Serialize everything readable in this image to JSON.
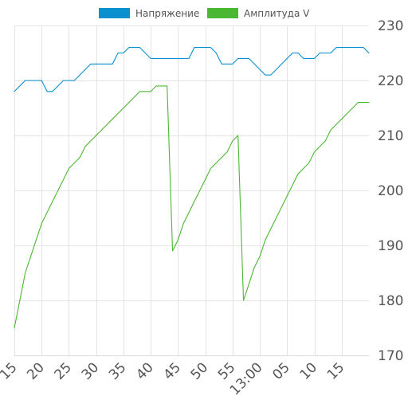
{
  "chart_data": {
    "type": "line",
    "legend": {
      "position": "top-center",
      "items": [
        {
          "name": "Напряжение",
          "color": "#0a8fcf"
        },
        {
          "name": "Амплитуда V",
          "color": "#4cb732"
        }
      ]
    },
    "y_axis": {
      "position": "right",
      "min": 170,
      "max": 230,
      "ticks": [
        170,
        180,
        190,
        200,
        210,
        220,
        230
      ]
    },
    "x_axis": {
      "unit": "minutes since 12:15",
      "tick_labels": [
        "15",
        "20",
        "25",
        "30",
        "35",
        "40",
        "45",
        "50",
        "55",
        "13:00",
        "05",
        "10",
        "15"
      ]
    },
    "grid": true,
    "series": [
      {
        "name": "Напряжение",
        "color": "#0a8fcf",
        "x": [
          0,
          1,
          2,
          3,
          4,
          5,
          6,
          7,
          8,
          9,
          10,
          11,
          12,
          13,
          14,
          15,
          16,
          17,
          18,
          19,
          20,
          21,
          22,
          23,
          24,
          25,
          26,
          27,
          28,
          29,
          30,
          31,
          32,
          33,
          34,
          35,
          36,
          37,
          38,
          39,
          40,
          41,
          42,
          43,
          44,
          45,
          46,
          47,
          48,
          49,
          50,
          51,
          52,
          53,
          54,
          55,
          56,
          57,
          58,
          59,
          60,
          61,
          62,
          63,
          64,
          65
        ],
        "values": [
          218,
          219,
          220,
          220,
          220,
          220,
          218,
          218,
          219,
          220,
          220,
          220,
          221,
          222,
          223,
          223,
          223,
          223,
          223,
          225,
          225,
          226,
          226,
          226,
          225,
          224,
          224,
          224,
          224,
          224,
          224,
          224,
          224,
          226,
          226,
          226,
          226,
          225,
          223,
          223,
          223,
          224,
          224,
          224,
          223,
          222,
          221,
          221,
          222,
          223,
          224,
          225,
          225,
          224,
          224,
          224,
          225,
          225,
          225,
          226,
          226,
          226,
          226,
          226,
          226,
          225
        ]
      },
      {
        "name": "Амплитуда V",
        "color": "#4cb732",
        "x": [
          0,
          1,
          2,
          3,
          4,
          5,
          6,
          7,
          8,
          9,
          10,
          11,
          12,
          13,
          14,
          15,
          16,
          17,
          18,
          19,
          20,
          21,
          22,
          23,
          24,
          25,
          26,
          27,
          28,
          29,
          30,
          31,
          32,
          33,
          34,
          35,
          36,
          37,
          38,
          39,
          40,
          41,
          42,
          43,
          44,
          45,
          46,
          47,
          48,
          49,
          50,
          51,
          52,
          53,
          54,
          55,
          56,
          57,
          58,
          59,
          60,
          61,
          62,
          63,
          64,
          65
        ],
        "values": [
          175,
          180,
          185,
          188,
          191,
          194,
          196,
          198,
          200,
          202,
          204,
          205,
          206,
          208,
          209,
          210,
          211,
          212,
          213,
          214,
          215,
          216,
          217,
          218,
          218,
          218,
          219,
          219,
          219,
          189,
          191,
          194,
          196,
          198,
          200,
          202,
          204,
          205,
          206,
          207,
          209,
          210,
          180,
          183,
          186,
          188,
          191,
          193,
          195,
          197,
          199,
          201,
          203,
          204,
          205,
          207,
          208,
          209,
          211,
          212,
          213,
          214,
          215,
          216,
          216,
          216
        ]
      }
    ]
  }
}
